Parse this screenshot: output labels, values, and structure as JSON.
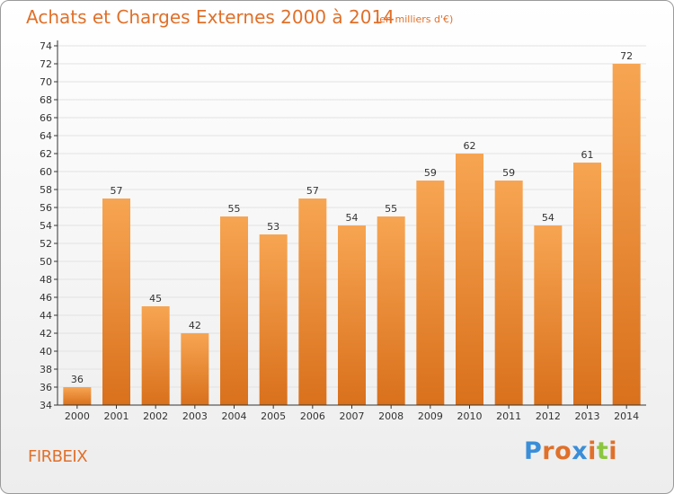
{
  "header": {
    "title": "Achats et Charges Externes 2000 à 2014",
    "unit": "(en milliers d'€)"
  },
  "footer": {
    "commune": "FIRBEIX",
    "logo": {
      "letters": [
        "P",
        "r",
        "o",
        "x",
        "i",
        "t",
        "i"
      ],
      "colors": [
        "#3a8ed8",
        "#e0702a",
        "#e0702a",
        "#3a8ed8",
        "#e0702a",
        "#8cc63f",
        "#e0702a"
      ]
    }
  },
  "chart_data": {
    "type": "bar",
    "title": "Achats et Charges Externes 2000 à 2014",
    "subtitle": "(en milliers d'€)",
    "xlabel": "",
    "ylabel": "",
    "categories": [
      "2000",
      "2001",
      "2002",
      "2003",
      "2004",
      "2005",
      "2006",
      "2007",
      "2008",
      "2009",
      "2010",
      "2011",
      "2012",
      "2013",
      "2014"
    ],
    "values": [
      36,
      57,
      45,
      42,
      55,
      53,
      57,
      54,
      55,
      59,
      62,
      59,
      54,
      61,
      72
    ],
    "ylim": [
      34,
      74
    ],
    "ytick_step": 2,
    "grid": "horizontal",
    "bar_color": "#f08a2e",
    "grid_color": "#e2e2e2",
    "axis_color": "#333333"
  }
}
